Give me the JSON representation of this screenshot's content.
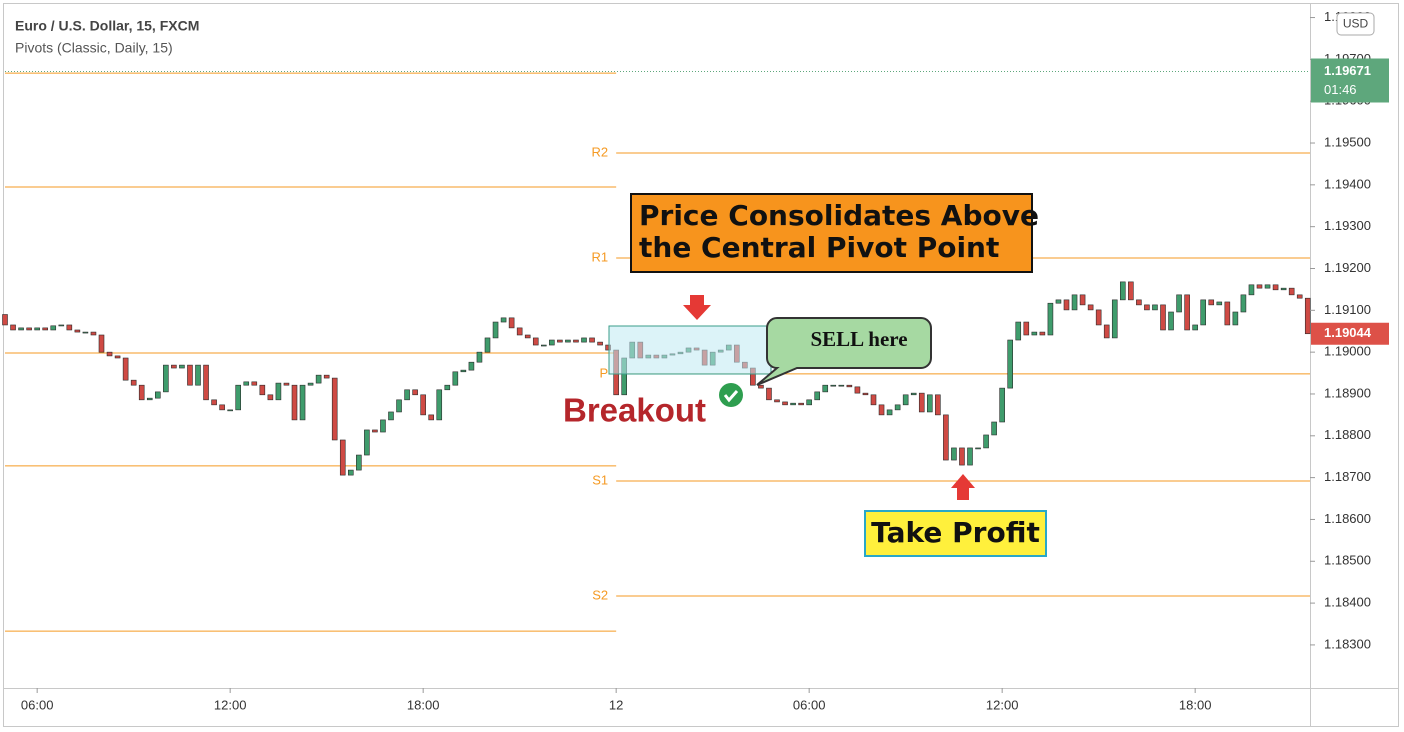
{
  "chart_data": {
    "type": "candlestick",
    "title": "Euro / U.S. Dollar, 15, FXCM",
    "subtitle": "Pivots (Classic, Daily, 15)",
    "currency": "USD",
    "colors": {
      "up": "#3f9c6c",
      "down": "#cf4a44",
      "pivot": "#f59a23",
      "price_marker": "#5ea77c",
      "last_price": "#dd5148"
    },
    "xlim": [
      5,
      45.57
    ],
    "ylim": [
      1.18197,
      1.1983
    ],
    "xticks": [
      {
        "value": 6,
        "label": "06:00"
      },
      {
        "value": 12,
        "label": "12:00"
      },
      {
        "value": 18,
        "label": "18:00"
      },
      {
        "value": 24,
        "label": "12"
      },
      {
        "value": 30,
        "label": "06:00"
      },
      {
        "value": 36,
        "label": "12:00"
      },
      {
        "value": 42,
        "label": "18:00"
      }
    ],
    "yticks": [
      {
        "value": 1.183,
        "label": "1.18300"
      },
      {
        "value": 1.184,
        "label": "1.18400"
      },
      {
        "value": 1.185,
        "label": "1.18500"
      },
      {
        "value": 1.186,
        "label": "1.18600"
      },
      {
        "value": 1.187,
        "label": "1.18700"
      },
      {
        "value": 1.188,
        "label": "1.18800"
      },
      {
        "value": 1.189,
        "label": "1.18900"
      },
      {
        "value": 1.19,
        "label": "1.19000"
      },
      {
        "value": 1.191,
        "label": "1.19100"
      },
      {
        "value": 1.192,
        "label": "1.19200"
      },
      {
        "value": 1.193,
        "label": "1.19300"
      },
      {
        "value": 1.194,
        "label": "1.19400"
      },
      {
        "value": 1.195,
        "label": "1.19500"
      },
      {
        "value": 1.196,
        "label": "1.19600"
      },
      {
        "value": 1.197,
        "label": "1.19700"
      },
      {
        "value": 1.198,
        "label": "1.19800"
      }
    ],
    "x": [
      5,
      5.25,
      5.5,
      5.75,
      6,
      6.25,
      6.5,
      6.75,
      7,
      7.25,
      7.5,
      7.75,
      8,
      8.25,
      8.5,
      8.75,
      9,
      9.25,
      9.5,
      9.75,
      10,
      10.25,
      10.5,
      10.75,
      11,
      11.25,
      11.5,
      11.75,
      12,
      12.25,
      12.5,
      12.75,
      13,
      13.25,
      13.5,
      13.75,
      14,
      14.25,
      14.5,
      14.75,
      15,
      15.25,
      15.5,
      15.75,
      16,
      16.25,
      16.5,
      16.75,
      17,
      17.25,
      17.5,
      17.75,
      18,
      18.25,
      18.5,
      18.75,
      19,
      19.25,
      19.5,
      19.75,
      20,
      20.25,
      20.5,
      20.75,
      21,
      21.25,
      21.5,
      21.75,
      22,
      22.25,
      22.5,
      22.75,
      23,
      23.25,
      23.5,
      23.75,
      24,
      24.25,
      24.5,
      24.75,
      25,
      25.25,
      25.5,
      25.75,
      26,
      26.25,
      26.5,
      26.75,
      27,
      27.25,
      27.5,
      27.75,
      28,
      28.25,
      28.5,
      28.75,
      29,
      29.25,
      29.5,
      29.75,
      30,
      30.25,
      30.5,
      30.75,
      31,
      31.25,
      31.5,
      31.75,
      32,
      32.25,
      32.5,
      32.75,
      33,
      33.25,
      33.5,
      33.75,
      34,
      34.25,
      34.5,
      34.75,
      35,
      35.25,
      35.5,
      35.75,
      36,
      36.25,
      36.5,
      36.75,
      37,
      37.25,
      37.5,
      37.75,
      38,
      38.25,
      38.5,
      38.75,
      39,
      39.25,
      39.5,
      39.75,
      40,
      40.25,
      40.5,
      40.75,
      41,
      41.25,
      41.5,
      41.75,
      42,
      42.25,
      42.5,
      42.75,
      43,
      43.25,
      43.5,
      43.75,
      44,
      44.25,
      44.5,
      44.75,
      45,
      45.25,
      45.5
    ],
    "open": [
      1.1909,
      1.19065,
      1.19053,
      1.19058,
      1.19053,
      1.19058,
      1.19053,
      1.19063,
      1.19065,
      1.19053,
      1.19048,
      1.19048,
      1.19041,
      1.19,
      1.18991,
      1.18986,
      1.18933,
      1.18921,
      1.18886,
      1.1889,
      1.18905,
      1.18969,
      1.18962,
      1.18969,
      1.18921,
      1.18969,
      1.18886,
      1.18874,
      1.18862,
      1.18862,
      1.18921,
      1.18929,
      1.18921,
      1.18898,
      1.18886,
      1.18926,
      1.18921,
      1.18838,
      1.18921,
      1.18926,
      1.18945,
      1.18938,
      1.1879,
      1.18706,
      1.18718,
      1.18754,
      1.18814,
      1.18809,
      1.18838,
      1.18857,
      1.18886,
      1.1891,
      1.18898,
      1.1885,
      1.18838,
      1.1891,
      1.18921,
      1.18953,
      1.18957,
      1.18976,
      1.19,
      1.19034,
      1.19072,
      1.19082,
      1.19058,
      1.19041,
      1.19034,
      1.19017,
      1.19017,
      1.19029,
      1.19024,
      1.19029,
      1.19024,
      1.19034,
      1.19024,
      1.19017,
      1.19005,
      1.18898,
      1.18986,
      1.19024,
      1.18986,
      1.18993,
      1.18986,
      1.18993,
      1.18996,
      1.19,
      1.1901,
      1.19005,
      1.18969,
      1.19,
      1.19005,
      1.19017,
      1.18976,
      1.18962,
      1.18921,
      1.18914,
      1.18886,
      1.18881,
      1.18874,
      1.18878,
      1.18874,
      1.18886,
      1.18905,
      1.18921,
      1.18921,
      1.18921,
      1.18917,
      1.18902,
      1.18898,
      1.18874,
      1.1885,
      1.18862,
      1.18874,
      1.18898,
      1.18902,
      1.18857,
      1.18898,
      1.1885,
      1.18742,
      1.18771,
      1.1873,
      1.18771,
      1.18771,
      1.18802,
      1.18833,
      1.18914,
      1.19029,
      1.19072,
      1.19041,
      1.19048,
      1.19041,
      1.19117,
      1.19125,
      1.19101,
      1.19137,
      1.19113,
      1.19101,
      1.19065,
      1.19034,
      1.19125,
      1.19168,
      1.19125,
      1.19113,
      1.19101,
      1.19113,
      1.19053,
      1.19096,
      1.19137,
      1.19053,
      1.19065,
      1.19125,
      1.19113,
      1.1912,
      1.19065,
      1.19096,
      1.19137,
      1.19161,
      1.19153,
      1.19161,
      1.19149,
      1.19153,
      1.19137,
      1.19129
    ],
    "close": [
      1.19065,
      1.19053,
      1.19058,
      1.19053,
      1.19058,
      1.19053,
      1.19063,
      1.19065,
      1.19053,
      1.19048,
      1.19048,
      1.19041,
      1.19,
      1.18991,
      1.18986,
      1.18933,
      1.18921,
      1.18886,
      1.1889,
      1.18905,
      1.18969,
      1.18962,
      1.18969,
      1.18921,
      1.18969,
      1.18886,
      1.18874,
      1.18862,
      1.18862,
      1.18921,
      1.18929,
      1.18921,
      1.18898,
      1.18886,
      1.18926,
      1.18921,
      1.18838,
      1.18921,
      1.18926,
      1.18945,
      1.18938,
      1.1879,
      1.18706,
      1.18718,
      1.18754,
      1.18814,
      1.18809,
      1.18838,
      1.18857,
      1.18886,
      1.1891,
      1.18898,
      1.1885,
      1.18838,
      1.1891,
      1.18921,
      1.18953,
      1.18957,
      1.18976,
      1.19,
      1.19034,
      1.19072,
      1.19082,
      1.19058,
      1.19041,
      1.19034,
      1.19017,
      1.19017,
      1.19029,
      1.19024,
      1.19029,
      1.19024,
      1.19034,
      1.19024,
      1.19017,
      1.19005,
      1.18898,
      1.18986,
      1.19024,
      1.18986,
      1.18993,
      1.18986,
      1.18993,
      1.18996,
      1.19,
      1.1901,
      1.19005,
      1.18969,
      1.19,
      1.19005,
      1.19017,
      1.18976,
      1.18962,
      1.18921,
      1.18914,
      1.18886,
      1.18881,
      1.18874,
      1.18878,
      1.18874,
      1.18886,
      1.18905,
      1.18921,
      1.18921,
      1.18921,
      1.18917,
      1.18902,
      1.18898,
      1.18874,
      1.1885,
      1.18862,
      1.18874,
      1.18898,
      1.18902,
      1.18857,
      1.18898,
      1.1885,
      1.18742,
      1.18771,
      1.1873,
      1.18771,
      1.18771,
      1.18802,
      1.18833,
      1.18914,
      1.19029,
      1.19072,
      1.19041,
      1.19048,
      1.19041,
      1.19117,
      1.19125,
      1.19101,
      1.19137,
      1.19113,
      1.19101,
      1.19065,
      1.19034,
      1.19125,
      1.19168,
      1.19125,
      1.19113,
      1.19101,
      1.19113,
      1.19053,
      1.19096,
      1.19137,
      1.19053,
      1.19065,
      1.19125,
      1.19113,
      1.1912,
      1.19065,
      1.19096,
      1.19137,
      1.19161,
      1.19153,
      1.19161,
      1.19149,
      1.19153,
      1.19137,
      1.19129,
      1.19044
    ],
    "pivots": [
      {
        "name": "R2",
        "value": 1.19476
      },
      {
        "name": "R1",
        "value": 1.19225
      },
      {
        "name": "P",
        "value": 1.18948
      },
      {
        "name": "S1",
        "value": 1.18692
      },
      {
        "name": "S2",
        "value": 1.18417
      }
    ],
    "previous_pivots": [
      1.19667,
      1.19395,
      1.18998,
      1.18728,
      1.18333
    ],
    "price_marker": 1.19671,
    "price_marker_time": "01:46",
    "last_price": 1.19044,
    "annotations": {
      "callout": [
        "Price Consolidates Above",
        "the Central Pivot Point"
      ],
      "sell": "SELL here",
      "breakout": "Breakout",
      "take_profit": "Take Profit"
    }
  }
}
